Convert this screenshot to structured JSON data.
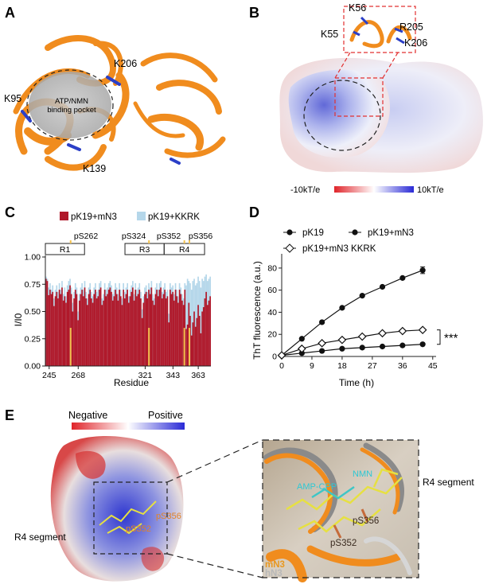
{
  "panels": {
    "A": {
      "letter": "A",
      "labels": {
        "k95": "K95",
        "k206": "K206",
        "k139": "K139",
        "pocket_line1": "ATP/NMN",
        "pocket_line2": "binding pocket"
      }
    },
    "B": {
      "letter": "B",
      "labels": {
        "k56": "K56",
        "k55": "K55",
        "r205": "R205",
        "k206": "K206"
      },
      "colorbar": {
        "min_label": "-10kT/e",
        "max_label": "10kT/e",
        "neg_color": "#e0242a",
        "pos_color": "#2a2ad6"
      }
    },
    "C": {
      "letter": "C"
    },
    "D": {
      "letter": "D"
    },
    "E": {
      "letter": "E",
      "scale": {
        "neg": "Negative",
        "pos": "Positive"
      },
      "left_labels": {
        "r4": "R4 segment",
        "ps352": "pS352",
        "ps356": "pS356"
      },
      "zoom_labels": {
        "ampcpp": "AMP-CPP",
        "nmn": "NMN",
        "ps356": "pS356",
        "ps352": "pS352",
        "r4": "R4 segment",
        "mn3": "mN3",
        "hn3": "hN3"
      }
    }
  },
  "colors": {
    "dark_red": "#b0182a",
    "light_blue": "#b5d7ea",
    "ps_marker": "#f2c14e",
    "cartoon_orange": "#f08c1e",
    "lysine_blue": "#2b3fc7"
  },
  "chart_data": [
    {
      "type": "bar",
      "title": "",
      "xlabel": "Residue",
      "ylabel": "I/I0",
      "xlim": [
        242,
        373
      ],
      "ylim": [
        0,
        1.0
      ],
      "xticks": [
        245,
        268,
        321,
        343,
        363
      ],
      "xtick_labels": [
        "245",
        "268",
        "321",
        "343",
        "363"
      ],
      "yticks": [
        0.0,
        0.25,
        0.5,
        0.75,
        1.0
      ],
      "ytick_labels": [
        "0.00",
        "0.25",
        "0.50",
        "0.75",
        "1.00"
      ],
      "legend": [
        "pK19+mN3",
        "pK19+KKRK"
      ],
      "series": [
        {
          "name": "pK19+mN3",
          "color": "#b0182a",
          "values": [
            0.8,
            0.78,
            0.65,
            0.7,
            0.66,
            0.68,
            0.55,
            0.64,
            0.68,
            0.62,
            0.7,
            0.66,
            0.72,
            0.6,
            0.64,
            0.58,
            0.68,
            0.7,
            0.74,
            0.66,
            0.5,
            0.62,
            0.7,
            0.66,
            0.42,
            0.6,
            0.66,
            0.7,
            0.64,
            0.72,
            0.62,
            0.56,
            0.66,
            0.7,
            0.62,
            0.58,
            0.66,
            0.7,
            0.62,
            0.64,
            0.7,
            0.72,
            0.56,
            0.6,
            0.7,
            0.64,
            0.66,
            0.7,
            0.72,
            0.68,
            0.6,
            0.64,
            0.7,
            0.66,
            0.6,
            0.7,
            0.64,
            0.56,
            0.7,
            0.62,
            0.66,
            0.7,
            0.58,
            0.64,
            0.68,
            0.72,
            0.6,
            0.7,
            0.64,
            0.66,
            0.7,
            0.62,
            0.44,
            0.58,
            0.66,
            0.68,
            0.62,
            0.7,
            0.66,
            0.72,
            0.6,
            0.56,
            0.66,
            0.7,
            0.64,
            0.7,
            0.72,
            0.62,
            0.66,
            0.7,
            0.62,
            0.64,
            0.4,
            0.7,
            0.66,
            0.68,
            0.6,
            0.7,
            0.64,
            0.58,
            0.7,
            0.66,
            0.6,
            0.56,
            0.7,
            0.34,
            0.38,
            0.58,
            0.46,
            0.28,
            0.4,
            0.5,
            0.36,
            0.44,
            0.56,
            0.46,
            0.3,
            0.5,
            0.54,
            0.62,
            0.68,
            0.56,
            0.6,
            0.64
          ]
        },
        {
          "name": "pK19+KKRK",
          "color": "#b5d7ea",
          "values": [
            0.82,
            0.8,
            0.72,
            0.76,
            0.7,
            0.74,
            0.62,
            0.7,
            0.74,
            0.68,
            0.76,
            0.7,
            0.78,
            0.66,
            0.72,
            0.64,
            0.74,
            0.78,
            0.8,
            0.72,
            0.58,
            0.68,
            0.76,
            0.72,
            0.5,
            0.66,
            0.72,
            0.76,
            0.7,
            0.78,
            0.68,
            0.62,
            0.72,
            0.76,
            0.68,
            0.64,
            0.72,
            0.76,
            0.68,
            0.7,
            0.76,
            0.78,
            0.62,
            0.66,
            0.76,
            0.7,
            0.72,
            0.76,
            0.78,
            0.74,
            0.66,
            0.7,
            0.76,
            0.72,
            0.66,
            0.76,
            0.7,
            0.62,
            0.76,
            0.68,
            0.72,
            0.76,
            0.64,
            0.7,
            0.74,
            0.78,
            0.66,
            0.76,
            0.7,
            0.72,
            0.76,
            0.68,
            0.52,
            0.64,
            0.72,
            0.74,
            0.68,
            0.76,
            0.72,
            0.78,
            0.66,
            0.62,
            0.72,
            0.76,
            0.7,
            0.76,
            0.78,
            0.68,
            0.72,
            0.76,
            0.68,
            0.7,
            0.48,
            0.76,
            0.72,
            0.74,
            0.66,
            0.76,
            0.7,
            0.64,
            0.76,
            0.72,
            0.66,
            0.62,
            0.76,
            0.74,
            0.8,
            0.78,
            0.76,
            0.7,
            0.78,
            0.8,
            0.74,
            0.76,
            0.82,
            0.78,
            0.72,
            0.8,
            0.78,
            0.82,
            0.84,
            0.78,
            0.8,
            0.82
          ]
        }
      ],
      "phospho_sites": [
        {
          "label": "pS262",
          "residue": 262
        },
        {
          "label": "pS324",
          "residue": 324
        },
        {
          "label": "pS352",
          "residue": 352
        },
        {
          "label": "pS356",
          "residue": 356
        }
      ],
      "regions": [
        {
          "label": "R1",
          "start": 242,
          "end": 273
        },
        {
          "label": "R3",
          "start": 305,
          "end": 336
        },
        {
          "label": "R4",
          "start": 336,
          "end": 368
        }
      ]
    },
    {
      "type": "line",
      "title": "",
      "xlabel": "Time (h)",
      "ylabel": "ThT fluorescence (a.u.)",
      "xlim": [
        0,
        46
      ],
      "ylim": [
        0,
        90
      ],
      "xticks": [
        0,
        9,
        18,
        27,
        36,
        45
      ],
      "xtick_labels": [
        "0",
        "9",
        "18",
        "27",
        "36",
        "45"
      ],
      "yticks": [
        0,
        20,
        40,
        60,
        80
      ],
      "ytick_labels": [
        "0",
        "20",
        "40",
        "60",
        "80"
      ],
      "x": [
        0,
        6,
        12,
        18,
        24,
        30,
        36,
        42
      ],
      "series": [
        {
          "name": "pK19",
          "marker": "filled-circle",
          "values": [
            1,
            16,
            31,
            44,
            55,
            63,
            71,
            78
          ],
          "error_last": 3
        },
        {
          "name": "pK19+mN3",
          "marker": "filled-circle",
          "values": [
            1,
            3,
            5,
            7,
            8,
            9,
            10,
            11
          ]
        },
        {
          "name": "pK19+mN3 KKRK",
          "marker": "open-diamond",
          "values": [
            1,
            7,
            12,
            15,
            18,
            21,
            23,
            24
          ]
        }
      ],
      "significance": "***"
    }
  ]
}
